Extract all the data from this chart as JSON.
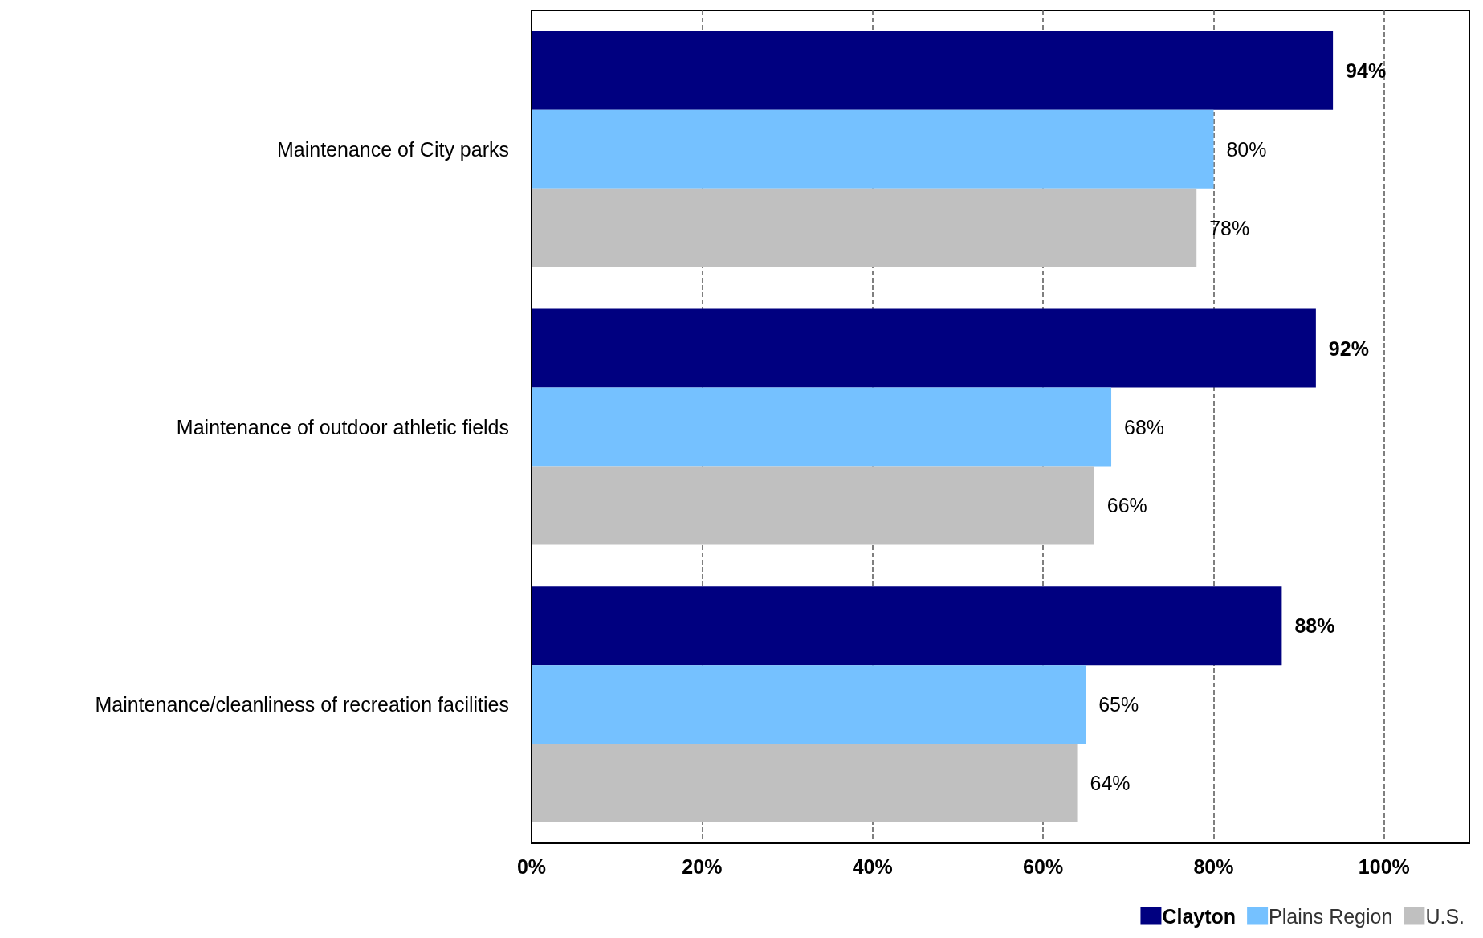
{
  "chart_data": {
    "type": "bar",
    "orientation": "horizontal",
    "categories": [
      "Maintenance of City parks",
      "Maintenance of outdoor athletic fields",
      "Maintenance/cleanliness of recreation facilities"
    ],
    "series": [
      {
        "name": "Clayton",
        "color": "#000080",
        "values": [
          94,
          92,
          88
        ],
        "value_labels": [
          "94%",
          "92%",
          "88%"
        ]
      },
      {
        "name": "Plains Region",
        "color": "#75c1ff",
        "values": [
          80,
          68,
          65
        ],
        "value_labels": [
          "80%",
          "68%",
          "65%"
        ]
      },
      {
        "name": "U.S.",
        "color": "#c0c0c0",
        "values": [
          78,
          66,
          64
        ],
        "value_labels": [
          "78%",
          "66%",
          "64%"
        ]
      }
    ],
    "xlim": [
      0,
      110
    ],
    "xticks": [
      {
        "value": 0,
        "label": "0%"
      },
      {
        "value": 20,
        "label": "20%"
      },
      {
        "value": 40,
        "label": "40%"
      },
      {
        "value": 60,
        "label": "60%"
      },
      {
        "value": 80,
        "label": "80%"
      },
      {
        "value": 100,
        "label": "100%"
      }
    ],
    "grid": "x",
    "legend": "bottom right"
  }
}
